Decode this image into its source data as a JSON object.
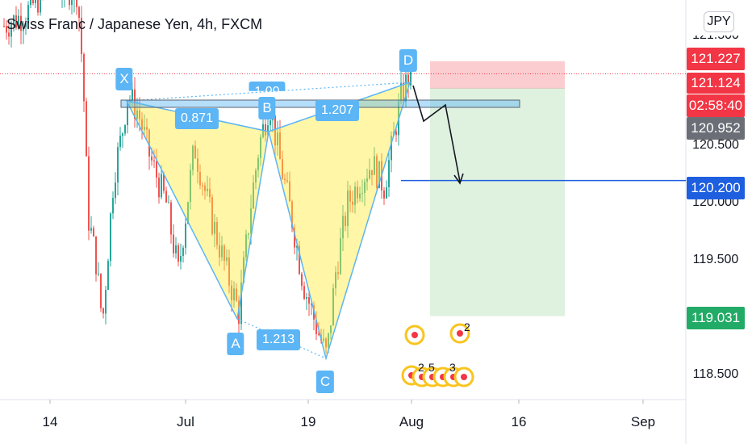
{
  "chart_data": {
    "type": "candlestick",
    "title": "Swiss Franc / Japanese Yen, 4h, FXCM",
    "currency": "JPY",
    "y_axis": {
      "ticks": [
        "121.500",
        "120.500",
        "120.000",
        "119.500",
        "118.500"
      ],
      "tick_values": [
        121.5,
        120.5,
        120.0,
        119.5,
        118.5
      ],
      "range": [
        118.35,
        121.6
      ]
    },
    "x_axis": {
      "ticks": [
        "14",
        "Jul",
        "19",
        "Aug",
        "16",
        "Sep"
      ]
    },
    "price_tags": [
      {
        "label": "121.227",
        "value": 121.227,
        "color": "#f23645"
      },
      {
        "label": "121.124",
        "value": 121.124,
        "color": "#f23645"
      },
      {
        "label": "02:58:40",
        "value": null,
        "color": "#f23645"
      },
      {
        "label": "120.952",
        "value": 120.952,
        "color": "#6b6e76"
      },
      {
        "label": "120.200",
        "value": 120.2,
        "color": "#1e5fe0"
      },
      {
        "label": "119.031",
        "value": 119.031,
        "color": "#22ab66"
      }
    ],
    "harmonic_pattern": {
      "points": [
        {
          "label": "X",
          "value": 120.95
        },
        {
          "label": "A",
          "value": 119.04
        },
        {
          "label": "B",
          "value": 120.88
        },
        {
          "label": "C",
          "value": 118.66
        },
        {
          "label": "D",
          "value": 121.12
        }
      ],
      "ratios": [
        "0.871",
        "1.213",
        "1.207",
        "1.00"
      ]
    },
    "position": {
      "entry": 120.952,
      "stop": 121.227,
      "target": 119.031,
      "level_line": 120.2
    },
    "event_markers": [
      "2",
      "5",
      "3",
      "2"
    ]
  }
}
